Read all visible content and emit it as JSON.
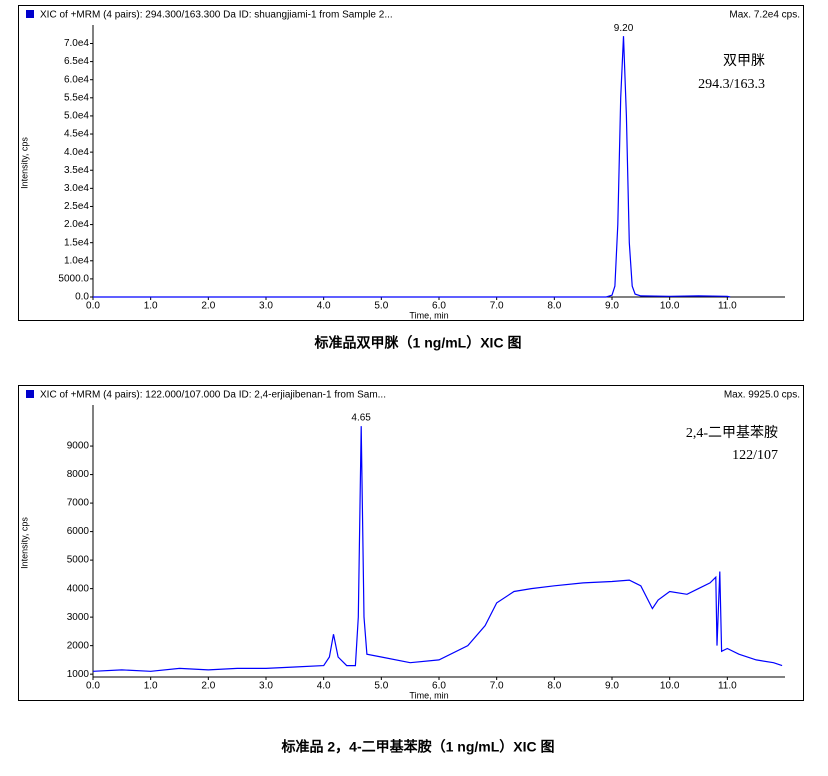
{
  "chart_data": [
    {
      "type": "line",
      "header": "XIC of +MRM (4 pairs): 294.300/163.300 Da ID: shuangjiami-1 from Sample 2...",
      "max_label": "Max. 7.2e4 cps.",
      "title": "标准品双甲脒（1 ng/mL）XIC 图",
      "x_label": "Time, min",
      "y_label": "Intensity, cps",
      "peak_label": "9.20",
      "annotations": [
        "双甲脒",
        "294.3/163.3"
      ],
      "color": "#0000ff",
      "x": [
        0,
        1,
        2,
        3,
        4,
        5,
        6,
        7,
        8,
        8.9,
        9.0,
        9.05,
        9.1,
        9.15,
        9.2,
        9.25,
        9.3,
        9.35,
        9.4,
        9.5,
        10,
        10.5,
        11,
        11.05
      ],
      "values": [
        0,
        0,
        0,
        0,
        0,
        0,
        0,
        0,
        0,
        0,
        500,
        3000,
        20000,
        55000,
        72000,
        50000,
        15000,
        3000,
        800,
        300,
        200,
        300,
        200,
        0
      ],
      "xlim": [
        0,
        12
      ],
      "ylim": [
        0,
        74000
      ],
      "xticks": [
        {
          "value": 0,
          "label": "0.0"
        },
        {
          "value": 1,
          "label": "1.0"
        },
        {
          "value": 2,
          "label": "2.0"
        },
        {
          "value": 3,
          "label": "3.0"
        },
        {
          "value": 4,
          "label": "4.0"
        },
        {
          "value": 5,
          "label": "5.0"
        },
        {
          "value": 6,
          "label": "6.0"
        },
        {
          "value": 7,
          "label": "7.0"
        },
        {
          "value": 8,
          "label": "8.0"
        },
        {
          "value": 9,
          "label": "9.0"
        },
        {
          "value": 10,
          "label": "10.0"
        },
        {
          "value": 11,
          "label": "11.0"
        }
      ],
      "yticks": [
        {
          "value": 0,
          "label": "0.0"
        },
        {
          "value": 5000,
          "label": "5000.0"
        },
        {
          "value": 10000,
          "label": "1.0e4"
        },
        {
          "value": 15000,
          "label": "1.5e4"
        },
        {
          "value": 20000,
          "label": "2.0e4"
        },
        {
          "value": 25000,
          "label": "2.5e4"
        },
        {
          "value": 30000,
          "label": "3.0e4"
        },
        {
          "value": 35000,
          "label": "3.5e4"
        },
        {
          "value": 40000,
          "label": "4.0e4"
        },
        {
          "value": 45000,
          "label": "4.5e4"
        },
        {
          "value": 50000,
          "label": "5.0e4"
        },
        {
          "value": 55000,
          "label": "5.5e4"
        },
        {
          "value": 60000,
          "label": "6.0e4"
        },
        {
          "value": 65000,
          "label": "6.5e4"
        },
        {
          "value": 70000,
          "label": "7.0e4"
        }
      ]
    },
    {
      "type": "line",
      "header": "XIC of +MRM (4 pairs): 122.000/107.000 Da ID: 2,4-erjiajibenan-1 from Sam...",
      "max_label": "Max. 9925.0 cps.",
      "title": "标准品 2，4-二甲基苯胺（1 ng/mL）XIC 图",
      "x_label": "Time, min",
      "y_label": "Intensity, cps",
      "peak_label": "4.65",
      "annotations": [
        "2,4-二甲基苯胺",
        "122/107"
      ],
      "color": "#0000ff",
      "x": [
        0,
        0.5,
        1,
        1.5,
        2,
        2.5,
        3,
        3.5,
        4.0,
        4.1,
        4.17,
        4.25,
        4.4,
        4.55,
        4.6,
        4.65,
        4.7,
        4.75,
        5.0,
        5.5,
        6.0,
        6.5,
        6.8,
        7.0,
        7.3,
        7.6,
        8.0,
        8.5,
        9.0,
        9.3,
        9.5,
        9.7,
        9.8,
        10.0,
        10.3,
        10.5,
        10.7,
        10.8,
        10.82,
        10.87,
        10.9,
        11.0,
        11.2,
        11.5,
        11.8,
        11.95
      ],
      "values": [
        1100,
        1150,
        1100,
        1200,
        1150,
        1200,
        1200,
        1250,
        1300,
        1600,
        2400,
        1600,
        1300,
        1300,
        3000,
        9700,
        3000,
        1700,
        1600,
        1400,
        1500,
        2000,
        2700,
        3500,
        3900,
        4000,
        4100,
        4200,
        4250,
        4300,
        4100,
        3300,
        3600,
        3900,
        3800,
        4000,
        4200,
        4400,
        2000,
        4600,
        1800,
        1900,
        1700,
        1500,
        1400,
        1300
      ],
      "xlim": [
        0,
        12
      ],
      "ylim": [
        900,
        10300
      ],
      "xticks": [
        {
          "value": 0,
          "label": "0.0"
        },
        {
          "value": 1,
          "label": "1.0"
        },
        {
          "value": 2,
          "label": "2.0"
        },
        {
          "value": 3,
          "label": "3.0"
        },
        {
          "value": 4,
          "label": "4.0"
        },
        {
          "value": 5,
          "label": "5.0"
        },
        {
          "value": 6,
          "label": "6.0"
        },
        {
          "value": 7,
          "label": "7.0"
        },
        {
          "value": 8,
          "label": "8.0"
        },
        {
          "value": 9,
          "label": "9.0"
        },
        {
          "value": 10,
          "label": "10.0"
        },
        {
          "value": 11,
          "label": "11.0"
        }
      ],
      "yticks": [
        1000,
        2000,
        3000,
        4000,
        5000,
        6000,
        7000,
        8000,
        9000
      ]
    }
  ]
}
